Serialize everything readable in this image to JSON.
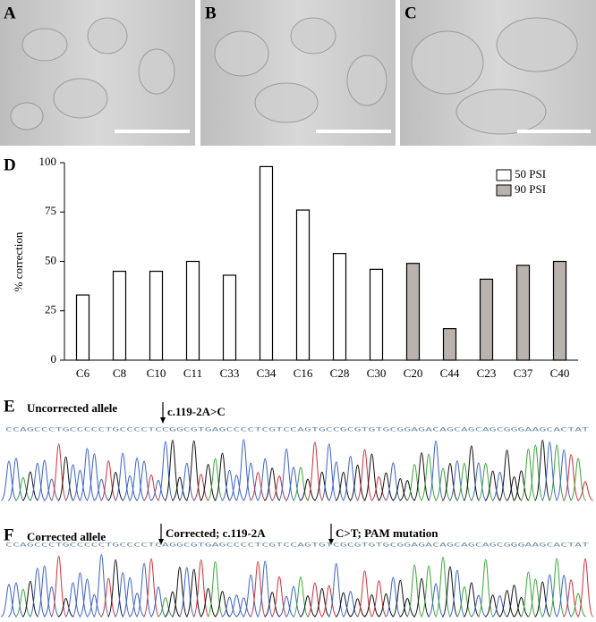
{
  "panels": [
    {
      "label": "A"
    },
    {
      "label": "B"
    },
    {
      "label": "C"
    }
  ],
  "chart_label": "D",
  "chart_data": {
    "type": "bar",
    "ylabel": "% correction",
    "categories": [
      "C6",
      "C8",
      "C10",
      "C11",
      "C33",
      "C34",
      "C16",
      "C28",
      "C30",
      "C20",
      "C44",
      "C23",
      "C37",
      "C40"
    ],
    "series": [
      {
        "name": "50 PSI",
        "color": "#ffffff",
        "values": [
          33,
          45,
          45,
          50,
          43,
          98,
          76,
          54,
          46,
          null,
          null,
          null,
          null,
          null
        ]
      },
      {
        "name": "90 PSI",
        "color": "#b9b3ae",
        "values": [
          null,
          null,
          null,
          null,
          null,
          null,
          null,
          null,
          null,
          49,
          16,
          41,
          48,
          50
        ]
      }
    ],
    "ylim": [
      0,
      100
    ],
    "yticks": [
      0,
      25,
      50,
      75,
      100
    ],
    "legend": "upper right"
  },
  "traces": [
    {
      "label": "E",
      "title": "Uncorrected allele",
      "annotations": [
        "c.119-2A>C"
      ],
      "sequence": "CCAGCCCTGCCCCCTGCCCCTCCGGCGTGAGCCCCTCGTCCAGTGCCGCGTGTGCGGAGACAGCAGCAGCGGGAAGCACTAT"
    },
    {
      "label": "F",
      "title": "Corrected allele",
      "annotations": [
        "Corrected; c.119-2A",
        "C>T; PAM mutation"
      ],
      "sequence": "CCAGCCCTGCCCCCTGCCCCTCAGGCGTGAGCCCCTCGTCCAGTGTCGCGTGTGCGGAGACAGCAGCAGCGGGAAGCACTAT"
    }
  ]
}
